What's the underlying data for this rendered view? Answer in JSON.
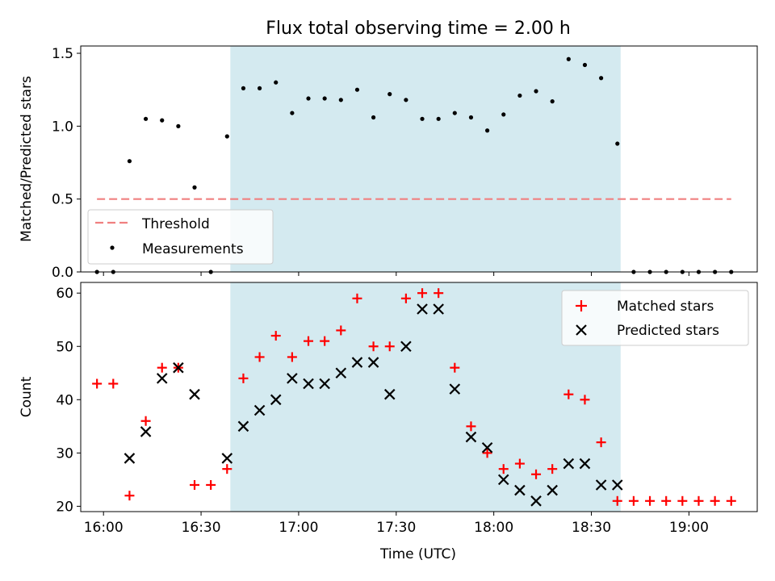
{
  "figure": {
    "title": "Flux total observing time = 2.00 h",
    "shade_color": "#d4eaf0",
    "xlabel": "Time (UTC)",
    "x_ticks": [
      "16:00",
      "16:30",
      "17:00",
      "17:30",
      "18:00",
      "18:30",
      "19:00"
    ],
    "x_tick_minutes": [
      960,
      990,
      1020,
      1050,
      1080,
      1110,
      1140
    ],
    "xlim_minutes": [
      953,
      1161
    ],
    "shade_minutes": [
      999,
      1119
    ]
  },
  "chart_data": [
    {
      "type": "scatter",
      "ylabel": "Matched/Predicted stars",
      "ylim": [
        0,
        1.55
      ],
      "y_ticks": [
        0.0,
        0.5,
        1.0,
        1.5
      ],
      "y_tick_labels": [
        "0.0",
        "0.5",
        "1.0",
        "1.5"
      ],
      "legend_position": "lower-left",
      "threshold": {
        "name": "Threshold",
        "value": 0.5,
        "x_range": [
          "15:58",
          "19:13"
        ],
        "color": "#f08080"
      },
      "series": [
        {
          "name": "Measurements",
          "color": "#000000",
          "points": [
            [
              "15:58",
              0.0
            ],
            [
              "16:03",
              0.0
            ],
            [
              "16:08",
              0.76
            ],
            [
              "16:13",
              1.05
            ],
            [
              "16:18",
              1.04
            ],
            [
              "16:23",
              1.0
            ],
            [
              "16:28",
              0.58
            ],
            [
              "16:33",
              0.0
            ],
            [
              "16:38",
              0.93
            ],
            [
              "16:43",
              1.26
            ],
            [
              "16:48",
              1.26
            ],
            [
              "16:53",
              1.3
            ],
            [
              "16:58",
              1.09
            ],
            [
              "17:03",
              1.19
            ],
            [
              "17:08",
              1.19
            ],
            [
              "17:13",
              1.18
            ],
            [
              "17:18",
              1.25
            ],
            [
              "17:23",
              1.06
            ],
            [
              "17:28",
              1.22
            ],
            [
              "17:33",
              1.18
            ],
            [
              "17:38",
              1.05
            ],
            [
              "17:43",
              1.05
            ],
            [
              "17:48",
              1.09
            ],
            [
              "17:53",
              1.06
            ],
            [
              "17:58",
              0.97
            ],
            [
              "18:03",
              1.08
            ],
            [
              "18:08",
              1.21
            ],
            [
              "18:13",
              1.24
            ],
            [
              "18:18",
              1.17
            ],
            [
              "18:23",
              1.46
            ],
            [
              "18:28",
              1.42
            ],
            [
              "18:33",
              1.33
            ],
            [
              "18:38",
              0.88
            ],
            [
              "18:43",
              0.0
            ],
            [
              "18:48",
              0.0
            ],
            [
              "18:53",
              0.0
            ],
            [
              "18:58",
              0.0
            ],
            [
              "19:03",
              0.0
            ],
            [
              "19:08",
              0.0
            ],
            [
              "19:13",
              0.0
            ]
          ]
        }
      ]
    },
    {
      "type": "scatter",
      "ylabel": "Count",
      "ylim": [
        19,
        62
      ],
      "y_ticks": [
        20,
        30,
        40,
        50,
        60
      ],
      "y_tick_labels": [
        "20",
        "30",
        "40",
        "50",
        "60"
      ],
      "legend_position": "upper-right",
      "series": [
        {
          "name": "Matched stars",
          "color": "#ff0000",
          "marker": "plus",
          "points": [
            [
              "15:58",
              43
            ],
            [
              "16:03",
              43
            ],
            [
              "16:08",
              22
            ],
            [
              "16:13",
              36
            ],
            [
              "16:18",
              46
            ],
            [
              "16:23",
              46
            ],
            [
              "16:28",
              24
            ],
            [
              "16:33",
              24
            ],
            [
              "16:38",
              27
            ],
            [
              "16:43",
              44
            ],
            [
              "16:48",
              48
            ],
            [
              "16:53",
              52
            ],
            [
              "16:58",
              48
            ],
            [
              "17:03",
              51
            ],
            [
              "17:08",
              51
            ],
            [
              "17:13",
              53
            ],
            [
              "17:18",
              59
            ],
            [
              "17:23",
              50
            ],
            [
              "17:28",
              50
            ],
            [
              "17:33",
              59
            ],
            [
              "17:38",
              60
            ],
            [
              "17:43",
              60
            ],
            [
              "17:48",
              46
            ],
            [
              "17:53",
              35
            ],
            [
              "17:58",
              30
            ],
            [
              "18:03",
              27
            ],
            [
              "18:08",
              28
            ],
            [
              "18:13",
              26
            ],
            [
              "18:18",
              27
            ],
            [
              "18:23",
              41
            ],
            [
              "18:28",
              40
            ],
            [
              "18:33",
              32
            ],
            [
              "18:38",
              21
            ],
            [
              "18:43",
              21
            ],
            [
              "18:48",
              21
            ],
            [
              "18:53",
              21
            ],
            [
              "18:58",
              21
            ],
            [
              "19:03",
              21
            ],
            [
              "19:08",
              21
            ],
            [
              "19:13",
              21
            ]
          ]
        },
        {
          "name": "Predicted stars",
          "color": "#000000",
          "marker": "x",
          "points": [
            [
              "16:08",
              29
            ],
            [
              "16:13",
              34
            ],
            [
              "16:18",
              44
            ],
            [
              "16:23",
              46
            ],
            [
              "16:28",
              41
            ],
            [
              "16:38",
              29
            ],
            [
              "16:43",
              35
            ],
            [
              "16:48",
              38
            ],
            [
              "16:53",
              40
            ],
            [
              "16:58",
              44
            ],
            [
              "17:03",
              43
            ],
            [
              "17:08",
              43
            ],
            [
              "17:13",
              45
            ],
            [
              "17:18",
              47
            ],
            [
              "17:23",
              47
            ],
            [
              "17:28",
              41
            ],
            [
              "17:33",
              50
            ],
            [
              "17:38",
              57
            ],
            [
              "17:43",
              57
            ],
            [
              "17:48",
              42
            ],
            [
              "17:53",
              33
            ],
            [
              "17:58",
              31
            ],
            [
              "18:03",
              25
            ],
            [
              "18:08",
              23
            ],
            [
              "18:13",
              21
            ],
            [
              "18:18",
              23
            ],
            [
              "18:23",
              28
            ],
            [
              "18:28",
              28
            ],
            [
              "18:33",
              24
            ],
            [
              "18:38",
              24
            ]
          ]
        }
      ]
    }
  ]
}
